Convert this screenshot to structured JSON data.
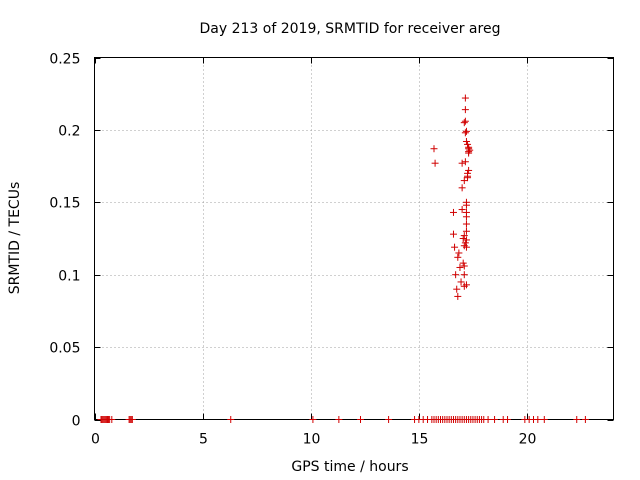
{
  "chart_data": {
    "type": "scatter",
    "title": "Day 213 of 2019, SRMTID for receiver areg",
    "xlabel": "GPS time / hours",
    "ylabel": "SRMTID / TECUs",
    "xlim": [
      0,
      24
    ],
    "ylim": [
      0,
      0.25
    ],
    "grid": true,
    "xticks": [
      0,
      5,
      10,
      15,
      20
    ],
    "xtick_labels": [
      "0",
      "5",
      "10",
      "15",
      "20"
    ],
    "yticks": [
      0,
      0.05,
      0.1,
      0.15,
      0.2,
      0.25
    ],
    "ytick_labels": [
      "0",
      "0.05",
      "0.1",
      "0.15",
      "0.2",
      "0.25"
    ],
    "marker_color": "#d00000",
    "marker": "plus",
    "series": [
      {
        "x": [
          0.3,
          0.35,
          0.4,
          0.45,
          0.5,
          0.55,
          0.6,
          0.65,
          0.7,
          0.8,
          1.6,
          1.65,
          1.7,
          1.75,
          6.3,
          10.1,
          11.3,
          12.3,
          13.6,
          14.8,
          15.0,
          15.2,
          15.4,
          15.6,
          15.7,
          15.8,
          15.9,
          16.0,
          16.1,
          16.2,
          16.3,
          16.4,
          16.5,
          16.6,
          16.7,
          16.8,
          16.9,
          17.0,
          17.1,
          17.2,
          17.3,
          17.4,
          17.5,
          17.6,
          17.7,
          17.8,
          17.9,
          18.0,
          18.2,
          18.5,
          18.9,
          19.1,
          19.9,
          20.1,
          20.3,
          20.5,
          20.8,
          22.3,
          22.7,
          15.7,
          15.75,
          16.6,
          16.6,
          16.65,
          16.7,
          16.75,
          16.8,
          16.8,
          16.85,
          16.9,
          16.95,
          17.0,
          17.0,
          17.0,
          17.05,
          17.05,
          17.1,
          17.1,
          17.1,
          17.1,
          17.15,
          17.15,
          17.15,
          17.15,
          17.2,
          17.2,
          17.2,
          17.2,
          17.2,
          17.25,
          17.25,
          17.25,
          17.3,
          17.3,
          17.3,
          17.1,
          17.15,
          17.2,
          17.2,
          17.2,
          17.25,
          17.3,
          17.35,
          17.1,
          17.2,
          17.3,
          17.15,
          17.2,
          17.1,
          17.2
        ],
        "y": [
          0,
          0,
          0,
          0,
          0,
          0,
          0,
          0,
          0,
          0,
          0,
          0,
          0,
          0,
          0,
          0,
          0,
          0,
          0,
          0,
          0,
          0,
          0,
          0,
          0,
          0,
          0,
          0,
          0,
          0,
          0,
          0,
          0,
          0,
          0,
          0,
          0,
          0,
          0,
          0,
          0,
          0,
          0,
          0,
          0,
          0,
          0,
          0,
          0,
          0,
          0,
          0,
          0,
          0,
          0,
          0,
          0,
          0,
          0,
          0.187,
          0.177,
          0.143,
          0.128,
          0.119,
          0.1,
          0.09,
          0.085,
          0.112,
          0.115,
          0.105,
          0.095,
          0.16,
          0.177,
          0.145,
          0.125,
          0.108,
          0.092,
          0.12,
          0.127,
          0.165,
          0.198,
          0.206,
          0.214,
          0.222,
          0.135,
          0.14,
          0.148,
          0.15,
          0.124,
          0.168,
          0.17,
          0.19,
          0.185,
          0.188,
          0.184,
          0.106,
          0.122,
          0.143,
          0.13,
          0.119,
          0.167,
          0.172,
          0.186,
          0.1,
          0.093,
          0.187,
          0.178,
          0.192,
          0.205,
          0.199
        ]
      }
    ]
  }
}
